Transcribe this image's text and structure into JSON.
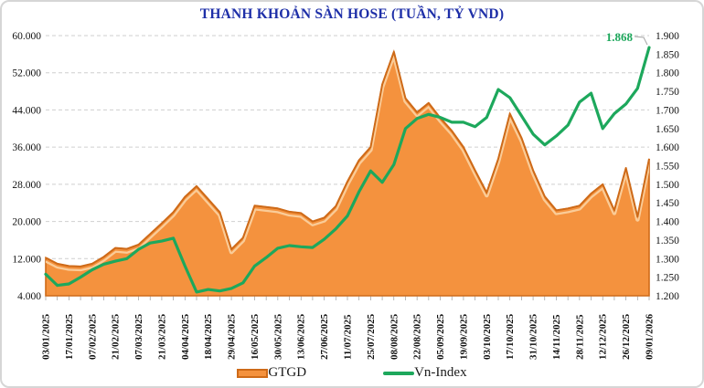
{
  "card": {
    "title": "THANH KHOẢN SÀN HOSE (TUẦN, TỶ VND)"
  },
  "legend": {
    "gtgd_label": "GTGD",
    "vnindex_label": "Vn-Index"
  },
  "annotation": {
    "last_value_label": "1.868"
  },
  "colors": {
    "title_text": "#1e2fa8",
    "area_fill": "#f4923e",
    "area_edge": "#ce6a18",
    "area_highlight": "#fbd3a2",
    "line_green": "#1da85c",
    "grid": "#cfcfcf",
    "axis_text": "#111111",
    "leader": "#a6a6a6"
  },
  "chart_data": {
    "type": "area",
    "subtype": "combo area(left-axis) + line(right-axis), weekly points, labels every 2nd week",
    "title": "THANH KHOẢN SÀN HOSE (TUẦN, TỶ VND)",
    "grid": "horizontal dashed at left-axis ticks",
    "legend_position": "bottom center",
    "x_tick_labels": [
      "03/01/2025",
      "17/01/2025",
      "07/02/2025",
      "21/02/2025",
      "07/03/2025",
      "21/03/2025",
      "04/04/2025",
      "18/04/2025",
      "29/04/2025",
      "16/05/2025",
      "30/05/2025",
      "13/06/2025",
      "27/06/2025",
      "11/07/2025",
      "25/07/2025",
      "08/08/2025",
      "22/08/2025",
      "05/09/2025",
      "19/09/2025",
      "03/10/2025",
      "17/10/2025",
      "31/10/2025",
      "14/11/2025",
      "28/11/2025",
      "12/12/2025",
      "26/12/2025",
      "09/01/2026"
    ],
    "left_axis": {
      "min": 4000,
      "max": 60000,
      "tick_labels": [
        "60.000",
        "52.000",
        "44.000",
        "36.000",
        "28.000",
        "20.000",
        "12.000",
        "4.000"
      ]
    },
    "right_axis": {
      "min": 1200,
      "max": 1900,
      "tick_labels": [
        "1.900",
        "1.850",
        "1.800",
        "1.750",
        "1.700",
        "1.650",
        "1.600",
        "1.550",
        "1.500",
        "1.450",
        "1.400",
        "1.350",
        "1.300",
        "1.250",
        "1.200"
      ]
    },
    "series": [
      {
        "name": "GTGD",
        "axis": "left",
        "style": "area",
        "values": [
          12200,
          10900,
          10400,
          10300,
          10900,
          12400,
          14300,
          14100,
          15000,
          17300,
          19600,
          22000,
          25300,
          27600,
          24800,
          22000,
          14000,
          16500,
          23400,
          23100,
          22800,
          22100,
          21800,
          20000,
          20800,
          23300,
          28600,
          33200,
          36000,
          49500,
          56500,
          46500,
          43500,
          45500,
          42300,
          39500,
          36000,
          31000,
          26200,
          33500,
          43200,
          38000,
          31000,
          25400,
          22400,
          22800,
          23400,
          26000,
          28000,
          22400,
          31500,
          21000,
          33500
        ]
      },
      {
        "name": "Vn-Index",
        "axis": "right",
        "style": "line",
        "values": [
          1258,
          1228,
          1232,
          1250,
          1270,
          1285,
          1293,
          1300,
          1325,
          1342,
          1347,
          1355,
          1280,
          1210,
          1217,
          1213,
          1220,
          1235,
          1280,
          1303,
          1328,
          1335,
          1332,
          1330,
          1352,
          1380,
          1415,
          1480,
          1536,
          1505,
          1553,
          1650,
          1677,
          1688,
          1680,
          1667,
          1667,
          1655,
          1680,
          1755,
          1733,
          1684,
          1635,
          1606,
          1630,
          1659,
          1721,
          1745,
          1650,
          1690,
          1716,
          1758,
          1868
        ]
      }
    ],
    "annotation": {
      "text": "1.868",
      "attached_to": "last Vn-Index point"
    }
  }
}
